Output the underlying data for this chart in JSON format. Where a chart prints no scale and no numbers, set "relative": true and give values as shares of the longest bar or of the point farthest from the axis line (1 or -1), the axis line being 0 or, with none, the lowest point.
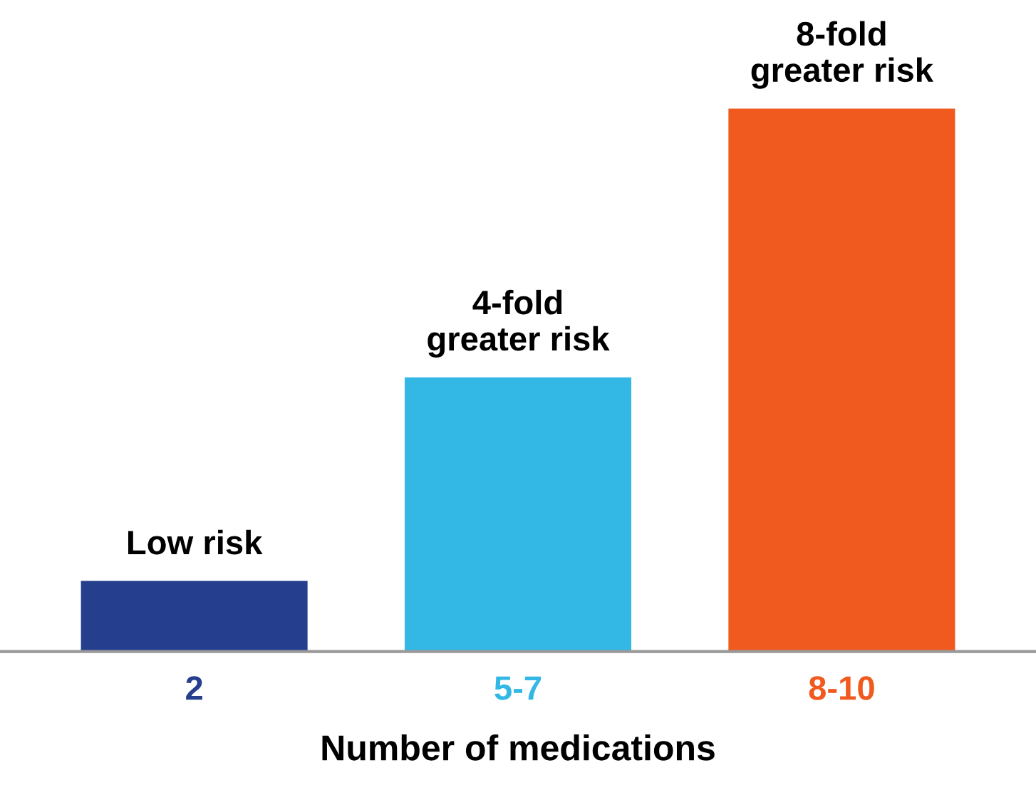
{
  "chart_data": {
    "type": "bar",
    "xlabel": "Number of medications",
    "categories": [
      "2",
      "5-7",
      "8-10"
    ],
    "values": [
      0.13,
      0.505,
      1
    ],
    "colors": [
      "#253f8e",
      "#33b8e6",
      "#f05a1e"
    ],
    "relative": true,
    "grid": false,
    "legend": false,
    "annotations": [
      {
        "text": "Low risk",
        "x": "2",
        "y": 0.13
      },
      {
        "text": "4-fold\ngreater risk",
        "x": "5-7",
        "y": 0.505
      },
      {
        "text": "8-fold\ngreater risk",
        "x": "8-10",
        "y": 1
      }
    ]
  }
}
